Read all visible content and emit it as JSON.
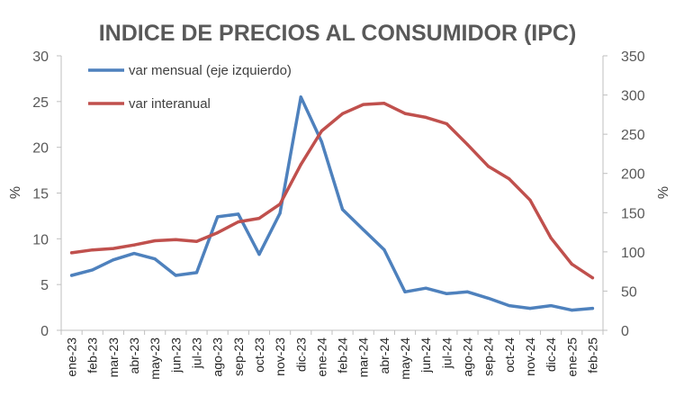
{
  "chart_data": {
    "type": "line",
    "title": "INDICE DE PRECIOS AL CONSUMIDOR (IPC)",
    "ylabel": "%",
    "y2label": "%",
    "x": [
      "ene-23",
      "feb-23",
      "mar-23",
      "abr-23",
      "may-23",
      "jun-23",
      "jul-23",
      "ago-23",
      "sep-23",
      "oct-23",
      "nov-23",
      "dic-23",
      "ene-24",
      "feb-24",
      "mar-24",
      "abr-24",
      "may-24",
      "jun-24",
      "jul-24",
      "ago-24",
      "sep-24",
      "oct-24",
      "nov-24",
      "dic-24",
      "ene-25",
      "feb-25"
    ],
    "ylim": [
      0,
      30
    ],
    "yticks": [
      "0",
      "5",
      "10",
      "15",
      "20",
      "25",
      "30"
    ],
    "y2lim": [
      0,
      350
    ],
    "y2ticks": [
      "0",
      "50",
      "100",
      "150",
      "200",
      "250",
      "300",
      "350"
    ],
    "grid": false,
    "legend_position": "top-left",
    "series": [
      {
        "name": "var mensual (eje izquierdo)",
        "axis": "left",
        "color": "#4E81BD",
        "values": [
          6.0,
          6.6,
          7.7,
          8.4,
          7.8,
          6.0,
          6.3,
          12.4,
          12.7,
          8.3,
          12.8,
          25.5,
          20.6,
          13.2,
          11.0,
          8.8,
          4.2,
          4.6,
          4.0,
          4.2,
          3.5,
          2.7,
          2.4,
          2.7,
          2.2,
          2.4
        ]
      },
      {
        "name": "var interanual",
        "axis": "right",
        "color": "#C0504D",
        "values": [
          98.8,
          102.5,
          104.3,
          108.8,
          114.2,
          115.6,
          113.4,
          124.4,
          138.3,
          142.7,
          160.9,
          211.4,
          254.2,
          276.2,
          287.9,
          289.4,
          276.4,
          271.5,
          263.4,
          236.7,
          209.0,
          193.0,
          166.0,
          117.8,
          84.5,
          66.9
        ]
      }
    ]
  }
}
